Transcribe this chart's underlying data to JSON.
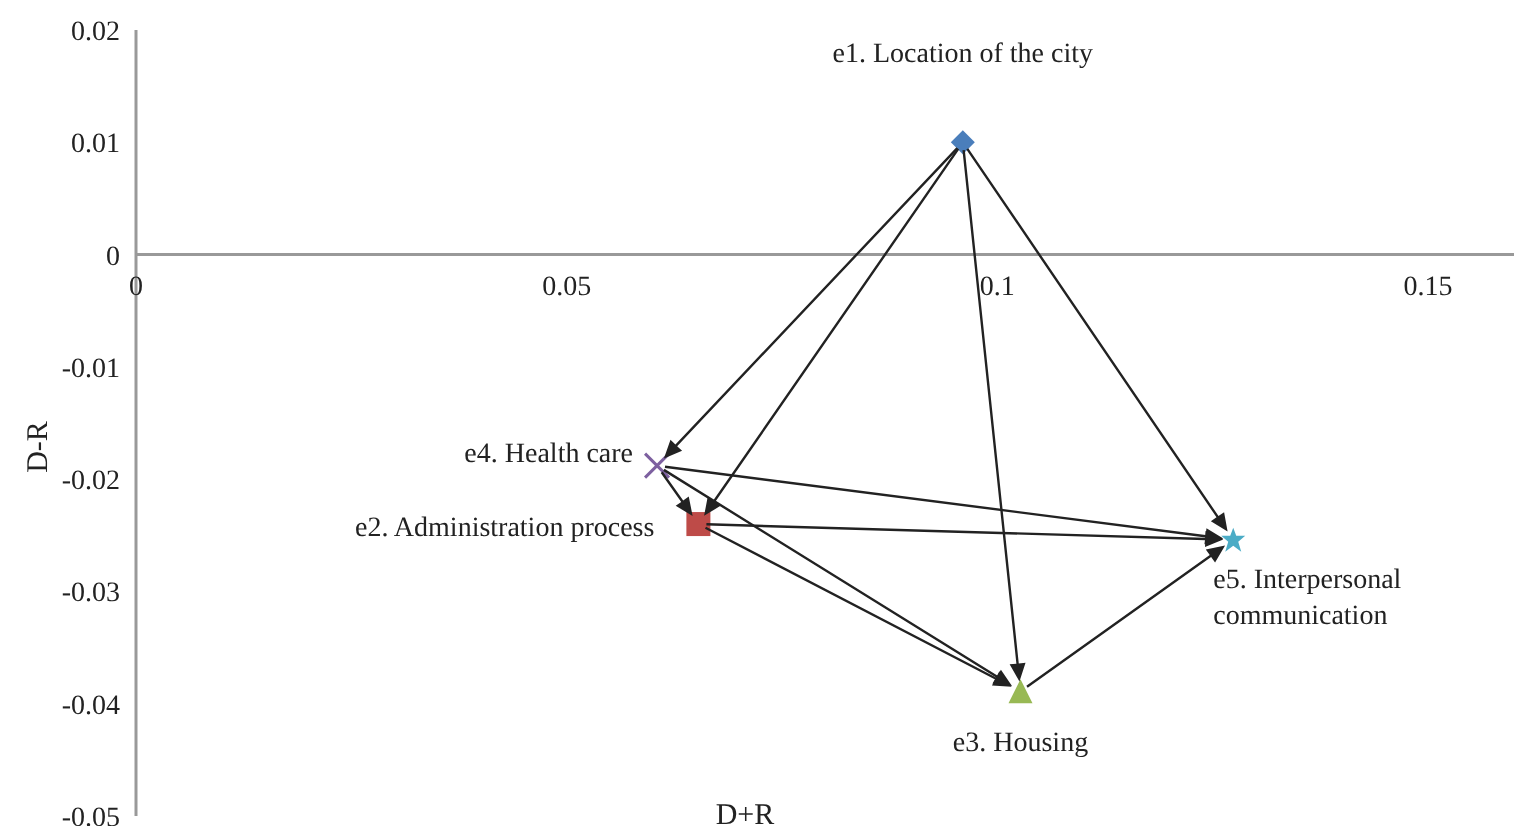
{
  "chart_data": {
    "type": "scatter",
    "xlabel": "D+R",
    "ylabel": "D-R",
    "xlim": [
      0,
      0.16
    ],
    "ylim": [
      -0.05,
      0.02
    ],
    "xticks": [
      0,
      0.05,
      0.1,
      0.15
    ],
    "yticks": [
      0.02,
      0.01,
      0,
      -0.01,
      -0.02,
      -0.03,
      -0.04,
      -0.05
    ],
    "series": [
      {
        "name": "e1. Location of the city",
        "color": "#4a7ebb",
        "x": [
          0.096
        ],
        "values": [
          0.01
        ],
        "marker": "diamond"
      },
      {
        "name": "e2. Administration process",
        "color": "#be4b48",
        "x": [
          0.0653
        ],
        "values": [
          -0.024
        ],
        "marker": "square"
      },
      {
        "name": "e3. Housing",
        "color": "#98b954",
        "x": [
          0.1027
        ],
        "values": [
          -0.0389
        ],
        "marker": "triangle"
      },
      {
        "name": "e4. Health care",
        "color": "#7d60a0",
        "x": [
          0.0605
        ],
        "values": [
          -0.0188
        ],
        "marker": "cross"
      },
      {
        "name": "e5. Interpersonal communication",
        "color": "#4bacc6",
        "x": [
          0.1274
        ],
        "values": [
          -0.0254
        ],
        "marker": "star"
      }
    ]
  }
}
